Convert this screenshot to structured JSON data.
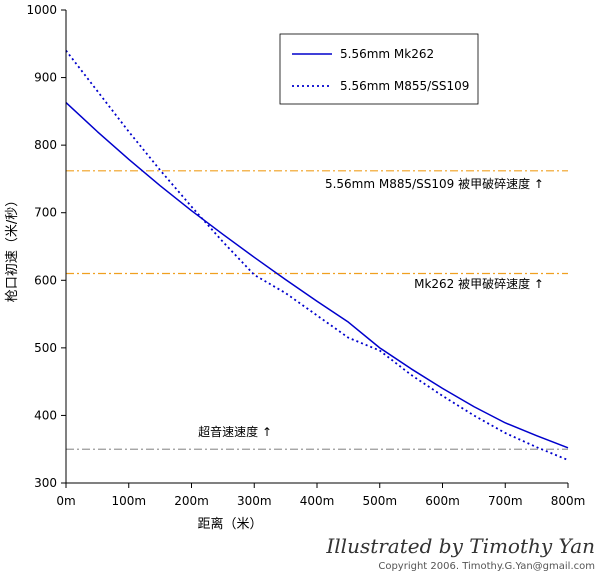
{
  "chart_data": {
    "type": "line",
    "xlabel": "距离（米）",
    "ylabel": "枪口初速（米/秒）",
    "xlim": [
      0,
      800
    ],
    "ylim": [
      300,
      1000
    ],
    "x_ticks": [
      0,
      100,
      200,
      300,
      400,
      500,
      600,
      700,
      800
    ],
    "x_tick_labels": [
      "0m",
      "100m",
      "200m",
      "300m",
      "400m",
      "500m",
      "600m",
      "700m",
      "800m"
    ],
    "y_ticks": [
      300,
      400,
      500,
      600,
      700,
      800,
      900,
      1000
    ],
    "y_tick_labels": [
      "300",
      "400",
      "500",
      "600",
      "700",
      "800",
      "900",
      "1000"
    ],
    "grid": false,
    "legend_position": "top-right",
    "series": [
      {
        "name": "5.56mm Mk262",
        "style": "solid",
        "color": "#0000cc",
        "x": [
          0,
          50,
          100,
          150,
          200,
          250,
          300,
          350,
          400,
          450,
          500,
          550,
          600,
          650,
          700,
          750,
          800
        ],
        "values": [
          863,
          820,
          779,
          740,
          703,
          668,
          634,
          601,
          569,
          538,
          500,
          469,
          440,
          413,
          389,
          370,
          352
        ]
      },
      {
        "name": "5.56mm M855/SS109",
        "style": "dotted",
        "color": "#0000cc",
        "x": [
          0,
          50,
          100,
          150,
          200,
          250,
          300,
          350,
          400,
          450,
          500,
          550,
          600,
          650,
          700,
          750,
          800
        ],
        "values": [
          940,
          880,
          820,
          763,
          709,
          657,
          608,
          581,
          548,
          515,
          496,
          460,
          429,
          400,
          374,
          353,
          334
        ]
      }
    ],
    "reference_lines": [
      {
        "y": 762,
        "color": "#f0a020",
        "style": "dashdot",
        "label": "5.56mm M885/SS109 被甲破碎速度 ↑"
      },
      {
        "y": 610,
        "color": "#f0a020",
        "style": "dashdot",
        "label": "Mk262 被甲破碎速度 ↑"
      },
      {
        "y": 350,
        "color": "#999999",
        "style": "dashdot",
        "label": "超音速速度 ↑"
      }
    ]
  },
  "credits": {
    "signature": "Illustrated by Timothy Yan",
    "copyright": "Copyright 2006. Timothy.G.Yan@gmail.com"
  }
}
